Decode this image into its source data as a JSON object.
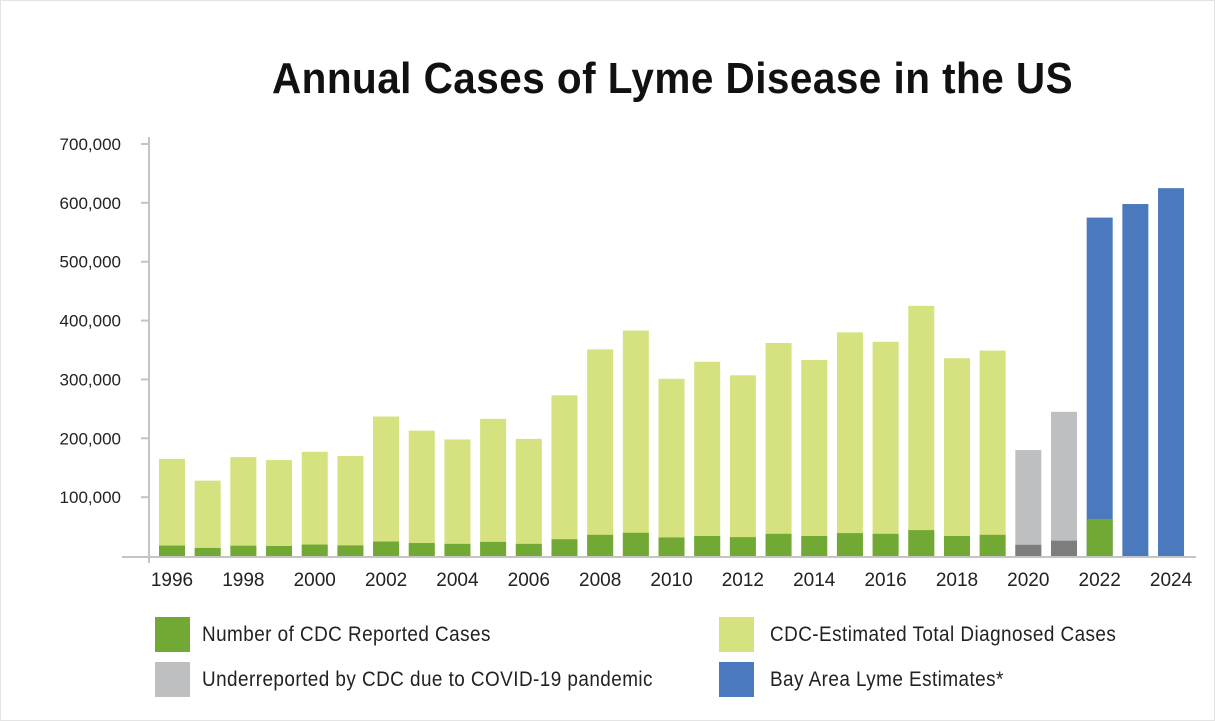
{
  "chart_data": {
    "type": "bar",
    "stacked": true,
    "title": "Annual Cases of Lyme Disease in the US",
    "xlabel": "",
    "ylabel": "",
    "ylim": [
      0,
      700000
    ],
    "yticks": [
      "100,000",
      "200,000",
      "300,000",
      "400,000",
      "500,000",
      "600,000",
      "700,000"
    ],
    "ytick_values": [
      100000,
      200000,
      300000,
      400000,
      500000,
      600000,
      700000
    ],
    "xtick_labels": [
      "1996",
      "1998",
      "2000",
      "2002",
      "2004",
      "2006",
      "2008",
      "2010",
      "2012",
      "2014",
      "2016",
      "2018",
      "2020",
      "2022",
      "2024"
    ],
    "categories": [
      1996,
      1997,
      1998,
      1999,
      2000,
      2001,
      2002,
      2003,
      2004,
      2005,
      2006,
      2007,
      2008,
      2009,
      2010,
      2011,
      2012,
      2013,
      2014,
      2015,
      2016,
      2017,
      2018,
      2019,
      2020,
      2021,
      2022,
      2023,
      2024
    ],
    "grid": false,
    "legend_position": "bottom",
    "series": [
      {
        "name": "Number of CDC Reported Cases",
        "color": "#72a834",
        "values": [
          17700,
          13700,
          17500,
          17000,
          19400,
          18000,
          24600,
          22000,
          20600,
          24000,
          20600,
          28500,
          36000,
          39400,
          31500,
          34000,
          32000,
          37700,
          34000,
          38900,
          37700,
          44000,
          34000,
          36000,
          null,
          null,
          63000,
          null,
          null
        ]
      },
      {
        "name": "CDC-Estimated Total Diagnosed Cases",
        "color": "#d5e27f",
        "values": [
          165000,
          128000,
          168000,
          163000,
          177000,
          170000,
          237000,
          213000,
          198000,
          233000,
          199000,
          273000,
          351000,
          383000,
          301000,
          330000,
          307000,
          362000,
          333000,
          380000,
          364000,
          425000,
          336000,
          349000,
          null,
          null,
          null,
          null,
          null
        ]
      },
      {
        "name": "Underreported by CDC due to COVID-19 pandemic",
        "color": "#bebfc0",
        "values": [
          null,
          null,
          null,
          null,
          null,
          null,
          null,
          null,
          null,
          null,
          null,
          null,
          null,
          null,
          null,
          null,
          null,
          null,
          null,
          null,
          null,
          null,
          null,
          null,
          180000,
          245000,
          null,
          null,
          null
        ]
      },
      {
        "name": "Bay Area Lyme Estimates*",
        "color": "#4a79bd",
        "values": [
          null,
          null,
          null,
          null,
          null,
          null,
          null,
          null,
          null,
          null,
          null,
          null,
          null,
          null,
          null,
          null,
          null,
          null,
          null,
          null,
          null,
          null,
          null,
          null,
          null,
          null,
          575000,
          598000,
          625000
        ]
      }
    ],
    "covid_reported_values": {
      "2020": 19000,
      "2021": 26000,
      "color": "#7d7d7d"
    }
  },
  "legend": [
    {
      "label": "Number of CDC Reported Cases",
      "color": "#72a834"
    },
    {
      "label": "CDC-Estimated Total Diagnosed Cases",
      "color": "#d5e27f"
    },
    {
      "label": "Underreported by CDC due to COVID-19 pandemic",
      "color": "#bebfc0"
    },
    {
      "label": "Bay Area Lyme Estimates*",
      "color": "#4a79bd"
    }
  ]
}
